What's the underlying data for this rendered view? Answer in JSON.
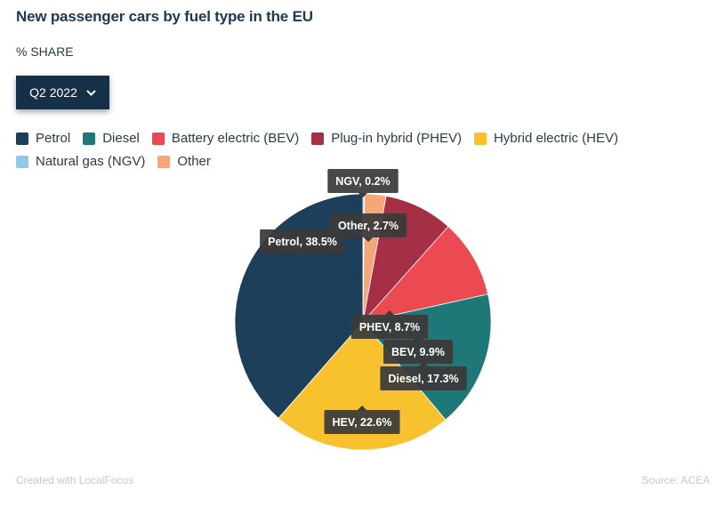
{
  "header": {
    "title": "New passenger cars by fuel type in the EU",
    "subtitle": "% SHARE"
  },
  "selector": {
    "selected": "Q2 2022",
    "icon": "chevron-down-icon"
  },
  "legend": {
    "items": [
      {
        "label": "Petrol",
        "color": "#1e3f5a"
      },
      {
        "label": "Diesel",
        "color": "#1e7878"
      },
      {
        "label": "Battery electric (BEV)",
        "color": "#ec4a52"
      },
      {
        "label": "Plug-in hybrid (PHEV)",
        "color": "#a52f45"
      },
      {
        "label": "Hybrid electric (HEV)",
        "color": "#f8c22f"
      },
      {
        "label": "Natural gas (NGV)",
        "color": "#93c6e7"
      },
      {
        "label": "Other",
        "color": "#f6a77a"
      }
    ]
  },
  "chart_data": {
    "type": "pie",
    "title": "New passenger cars by fuel type in the EU",
    "unit": "% share",
    "period": "Q2 2022",
    "slices": [
      {
        "key": "ngv",
        "name": "Natural gas (NGV)",
        "label": "NGV, 0.2%",
        "value": 0.2,
        "color": "#93c6e7"
      },
      {
        "key": "other",
        "name": "Other",
        "label": "Other, 2.7%",
        "value": 2.7,
        "color": "#f6a77a"
      },
      {
        "key": "phev",
        "name": "Plug-in hybrid (PHEV)",
        "label": "PHEV, 8.7%",
        "value": 8.7,
        "color": "#a52f45"
      },
      {
        "key": "bev",
        "name": "Battery electric (BEV)",
        "label": "BEV, 9.9%",
        "value": 9.9,
        "color": "#ec4a52"
      },
      {
        "key": "diesel",
        "name": "Diesel",
        "label": "Diesel, 17.3%",
        "value": 17.3,
        "color": "#1e7878"
      },
      {
        "key": "hev",
        "name": "Hybrid electric (HEV)",
        "label": "HEV, 22.6%",
        "value": 22.6,
        "color": "#f8c22f"
      },
      {
        "key": "petrol",
        "name": "Petrol",
        "label": "Petrol, 38.5%",
        "value": 38.5,
        "color": "#1e3f5a"
      }
    ]
  },
  "footer": {
    "credit": "Created with LocalFocus",
    "source": "Source: ACEA"
  }
}
